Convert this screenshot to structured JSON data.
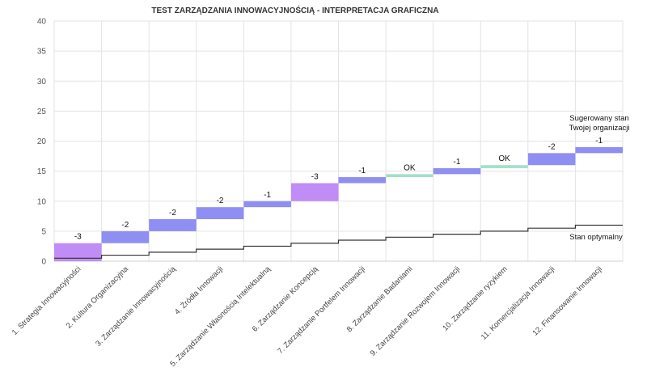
{
  "chart_data": {
    "type": "bar",
    "title": "TEST ZARZĄDZANIA INNOWACYJNOŚCIĄ - INTERPRETACJA GRAFICZNA",
    "xlabel": "",
    "ylabel": "",
    "ylim": [
      0,
      40
    ],
    "yticks": [
      0,
      5,
      10,
      15,
      20,
      25,
      30,
      35,
      40
    ],
    "grid": true,
    "categories": [
      "1. Strategia Innowacyjności",
      "2. Kultura Organizacyjna",
      "3. Zarządzanie Innowacyjnością",
      "4. Źródła Innowacji",
      "5. Zarządzanie Własnością Intelektualną",
      "6. Zarządzanie Koncepcją",
      "7. Zarządzanie Portfelem Innowacji",
      "8. Zarządzanie Badaniami",
      "9. Zarządzanie Rozwojem Innowacji",
      "10. Zarządzanie ryzykiem",
      "11. Komercjalizacja Innowacji",
      "12. Finansowanie Innowacji"
    ],
    "gap_bars": [
      {
        "from": 0,
        "to": 3,
        "label": "-3",
        "color": "#c08cf5"
      },
      {
        "from": 3,
        "to": 5,
        "label": "-2",
        "color": "#8f8ef2"
      },
      {
        "from": 5,
        "to": 7,
        "label": "-2",
        "color": "#8f8ef2"
      },
      {
        "from": 7,
        "to": 9,
        "label": "-2",
        "color": "#8f8ef2"
      },
      {
        "from": 9,
        "to": 10,
        "label": "-1",
        "color": "#8f8ef2"
      },
      {
        "from": 10,
        "to": 13,
        "label": "-3",
        "color": "#c08cf5"
      },
      {
        "from": 13,
        "to": 14,
        "label": "-1",
        "color": "#8f8ef2"
      },
      {
        "from": 14,
        "to": 14.5,
        "label": "OK",
        "color": "#a3e0c7"
      },
      {
        "from": 14.5,
        "to": 15.5,
        "label": "-1",
        "color": "#8f8ef2"
      },
      {
        "from": 15.5,
        "to": 16,
        "label": "OK",
        "color": "#a3e0c7"
      },
      {
        "from": 16,
        "to": 18,
        "label": "-2",
        "color": "#8f8ef2"
      },
      {
        "from": 18,
        "to": 19,
        "label": "-1",
        "color": "#8f8ef2"
      }
    ],
    "series": [
      {
        "name": "Stan optymalny",
        "values": [
          0.5,
          1,
          1.5,
          2,
          2.5,
          3,
          3.5,
          4,
          4.5,
          5,
          5.5,
          6
        ]
      }
    ],
    "annotations": {
      "suggested_line1": "Sugerowany stan",
      "suggested_line2": "Twojej organizacji",
      "optimal": "Stan optymalny"
    }
  }
}
